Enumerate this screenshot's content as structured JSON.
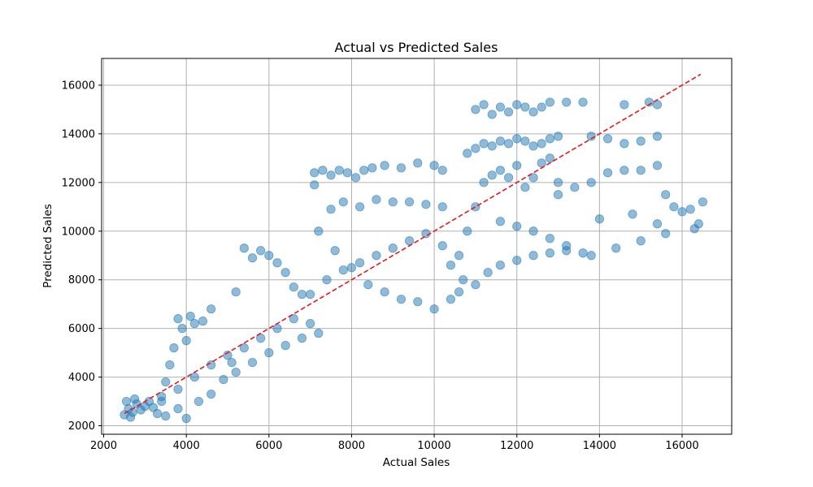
{
  "chart_data": {
    "type": "scatter",
    "title": "Actual vs Predicted Sales",
    "xlabel": "Actual Sales",
    "ylabel": "Predicted Sales",
    "xlim": [
      1950,
      17200
    ],
    "ylim": [
      1650,
      17100
    ],
    "xticks": [
      2000,
      4000,
      6000,
      8000,
      10000,
      12000,
      14000,
      16000
    ],
    "yticks": [
      2000,
      4000,
      6000,
      8000,
      10000,
      12000,
      14000,
      16000
    ],
    "grid": true,
    "point_color": "#1f77b4",
    "point_alpha": 0.5,
    "reference_line": {
      "style": "dashed",
      "color": "#e41a1c",
      "from": [
        2500,
        2500
      ],
      "to": [
        16450,
        16450
      ]
    },
    "series": [
      {
        "points": [
          [
            2500,
            2450
          ],
          [
            2600,
            2700
          ],
          [
            2700,
            2550
          ],
          [
            2800,
            2900
          ],
          [
            2900,
            2650
          ],
          [
            3000,
            2800
          ],
          [
            3100,
            3000
          ],
          [
            3200,
            2750
          ],
          [
            3300,
            2500
          ],
          [
            2550,
            3000
          ],
          [
            2650,
            2350
          ],
          [
            2750,
            3100
          ],
          [
            3400,
            3200
          ],
          [
            3500,
            3800
          ],
          [
            3600,
            4500
          ],
          [
            3700,
            5200
          ],
          [
            3800,
            6400
          ],
          [
            3900,
            6000
          ],
          [
            4000,
            5500
          ],
          [
            4100,
            6500
          ],
          [
            4200,
            6200
          ],
          [
            4400,
            6300
          ],
          [
            4600,
            6800
          ],
          [
            3500,
            2400
          ],
          [
            3800,
            2700
          ],
          [
            4000,
            2300
          ],
          [
            4300,
            3000
          ],
          [
            4600,
            3300
          ],
          [
            4900,
            3900
          ],
          [
            5100,
            4600
          ],
          [
            5200,
            7500
          ],
          [
            5400,
            9300
          ],
          [
            5600,
            8900
          ],
          [
            5800,
            9200
          ],
          [
            6000,
            9000
          ],
          [
            6200,
            8700
          ],
          [
            6400,
            8300
          ],
          [
            6600,
            7700
          ],
          [
            6800,
            7400
          ],
          [
            5200,
            4200
          ],
          [
            5600,
            4600
          ],
          [
            6000,
            5000
          ],
          [
            6400,
            5300
          ],
          [
            6800,
            5600
          ],
          [
            7000,
            6200
          ],
          [
            7200,
            5800
          ],
          [
            7100,
            12400
          ],
          [
            7300,
            12500
          ],
          [
            7500,
            12300
          ],
          [
            7700,
            12500
          ],
          [
            7900,
            12400
          ],
          [
            8100,
            12200
          ],
          [
            8300,
            12500
          ],
          [
            8500,
            12600
          ],
          [
            8800,
            12700
          ],
          [
            9200,
            12600
          ],
          [
            9600,
            12800
          ],
          [
            10000,
            12700
          ],
          [
            10200,
            12500
          ],
          [
            7100,
            11900
          ],
          [
            7500,
            10900
          ],
          [
            7800,
            11200
          ],
          [
            8200,
            11000
          ],
          [
            8600,
            11300
          ],
          [
            9000,
            11200
          ],
          [
            9400,
            11200
          ],
          [
            9800,
            11100
          ],
          [
            10200,
            11000
          ],
          [
            7200,
            10000
          ],
          [
            7600,
            9200
          ],
          [
            8000,
            8500
          ],
          [
            8400,
            7800
          ],
          [
            8800,
            7500
          ],
          [
            9200,
            7200
          ],
          [
            9600,
            7100
          ],
          [
            10000,
            6800
          ],
          [
            10400,
            7200
          ],
          [
            10600,
            7500
          ],
          [
            10400,
            8600
          ],
          [
            10200,
            9400
          ],
          [
            9800,
            9900
          ],
          [
            9400,
            9600
          ],
          [
            9000,
            9300
          ],
          [
            8600,
            9000
          ],
          [
            8200,
            8700
          ],
          [
            7800,
            8400
          ],
          [
            7400,
            8000
          ],
          [
            7000,
            7400
          ],
          [
            6600,
            6400
          ],
          [
            6200,
            6000
          ],
          [
            5800,
            5600
          ],
          [
            5400,
            5200
          ],
          [
            5000,
            4900
          ],
          [
            4600,
            4500
          ],
          [
            4200,
            4000
          ],
          [
            3800,
            3500
          ],
          [
            3400,
            3000
          ],
          [
            10600,
            9000
          ],
          [
            10800,
            10000
          ],
          [
            11000,
            11000
          ],
          [
            11200,
            12000
          ],
          [
            11400,
            12300
          ],
          [
            11600,
            12500
          ],
          [
            11800,
            12200
          ],
          [
            12000,
            12700
          ],
          [
            12200,
            11800
          ],
          [
            12400,
            12200
          ],
          [
            12600,
            12800
          ],
          [
            12800,
            13000
          ],
          [
            13000,
            12000
          ],
          [
            10700,
            8000
          ],
          [
            11000,
            7800
          ],
          [
            11300,
            8300
          ],
          [
            11600,
            8600
          ],
          [
            12000,
            8800
          ],
          [
            12400,
            9000
          ],
          [
            12800,
            9100
          ],
          [
            13200,
            9200
          ],
          [
            13600,
            9100
          ],
          [
            10800,
            13200
          ],
          [
            11000,
            13400
          ],
          [
            11200,
            13600
          ],
          [
            11400,
            13500
          ],
          [
            11600,
            13700
          ],
          [
            11800,
            13600
          ],
          [
            12000,
            13800
          ],
          [
            12200,
            13700
          ],
          [
            12400,
            13500
          ],
          [
            12600,
            13600
          ],
          [
            12800,
            13800
          ],
          [
            13000,
            13900
          ],
          [
            13800,
            13900
          ],
          [
            14200,
            13800
          ],
          [
            14600,
            13600
          ],
          [
            15000,
            13700
          ],
          [
            15400,
            13900
          ],
          [
            11000,
            15000
          ],
          [
            11200,
            15200
          ],
          [
            11400,
            14800
          ],
          [
            11600,
            15100
          ],
          [
            11800,
            14900
          ],
          [
            12000,
            15200
          ],
          [
            12200,
            15100
          ],
          [
            12400,
            14900
          ],
          [
            12600,
            15100
          ],
          [
            12800,
            15300
          ],
          [
            13200,
            15300
          ],
          [
            13600,
            15300
          ],
          [
            14600,
            15200
          ],
          [
            15200,
            15300
          ],
          [
            15400,
            15200
          ],
          [
            13000,
            11500
          ],
          [
            13400,
            11800
          ],
          [
            13800,
            12000
          ],
          [
            14200,
            12400
          ],
          [
            14600,
            12500
          ],
          [
            15000,
            12500
          ],
          [
            15400,
            12700
          ],
          [
            15600,
            11500
          ],
          [
            15800,
            11000
          ],
          [
            16000,
            10800
          ],
          [
            16200,
            10900
          ],
          [
            16400,
            10300
          ],
          [
            16500,
            11200
          ],
          [
            16300,
            10100
          ],
          [
            15600,
            9900
          ],
          [
            15000,
            9600
          ],
          [
            14400,
            9300
          ],
          [
            13800,
            9000
          ],
          [
            13200,
            9400
          ],
          [
            12800,
            9700
          ],
          [
            12400,
            10000
          ],
          [
            12000,
            10200
          ],
          [
            11600,
            10400
          ],
          [
            14000,
            10500
          ],
          [
            14800,
            10700
          ],
          [
            15400,
            10300
          ]
        ]
      }
    ]
  }
}
